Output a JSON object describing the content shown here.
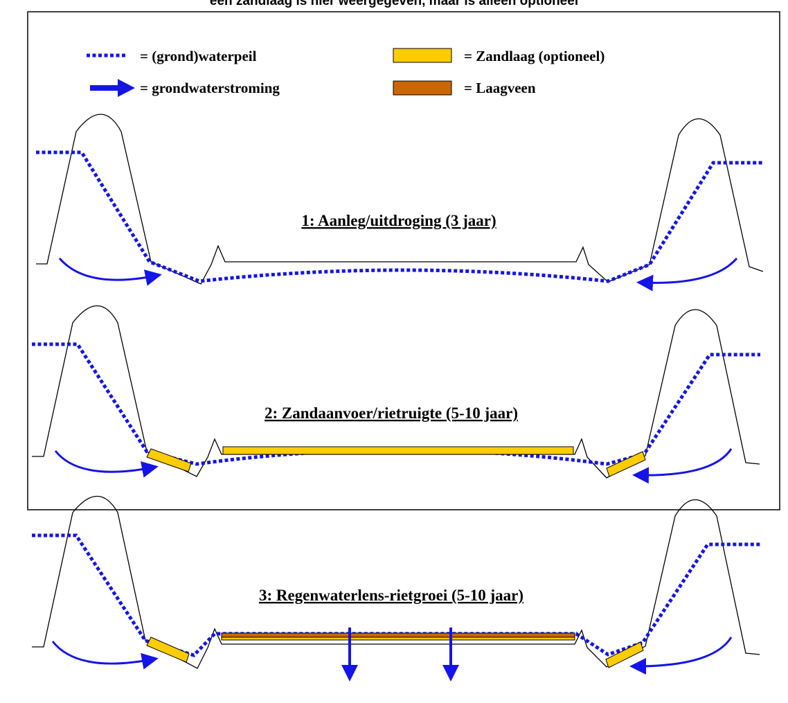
{
  "caption": "een zandlaag is hier weergegeven, maar is alleen optioneel",
  "legend": {
    "water_level": "= (grond)waterpeil",
    "groundwater_flow": "= grondwaterstroming",
    "sand_layer": "= Zandlaag (optioneel)",
    "peat_layer": "= Laagveen"
  },
  "stages": [
    {
      "title": "1: Aanleg/uitdroging (3 jaar)"
    },
    {
      "title": "2: Zandaanvoer/rietruigte (5-10 jaar)"
    },
    {
      "title": "3: Regenwaterlens-rietgroei (5-10 jaar)"
    }
  ],
  "colors": {
    "water": "#1414e6",
    "sand": "#ffcc00",
    "peat": "#cc6600"
  }
}
